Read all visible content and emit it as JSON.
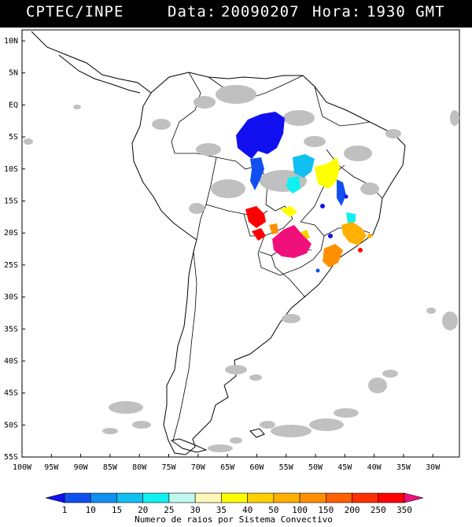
{
  "header": {
    "source": "CPTEC/INPE",
    "date_label": "Data:",
    "date_value": "20090207",
    "hour_label": "Hora:",
    "hour_value": "1930 GMT"
  },
  "map": {
    "lat_ticks": [
      "10N",
      "5N",
      "EQ",
      "5S",
      "10S",
      "15S",
      "20S",
      "25S",
      "30S",
      "35S",
      "40S",
      "45S",
      "50S",
      "55S"
    ],
    "lon_ticks": [
      "100W",
      "95W",
      "90W",
      "85W",
      "80W",
      "75W",
      "70W",
      "65W",
      "60W",
      "55W",
      "50W",
      "45W",
      "40W",
      "35W",
      "30W"
    ],
    "cloud_color": "#c0c0c0",
    "coast_color": "#000000"
  },
  "legend": {
    "title": "Numero de raios por Sistema Convectivo",
    "labels": [
      "1",
      "10",
      "15",
      "20",
      "25",
      "30",
      "35",
      "40",
      "50",
      "100",
      "150",
      "200",
      "250",
      "350"
    ],
    "colors": [
      "#1010f0",
      "#1050f0",
      "#1090f0",
      "#10c0f0",
      "#10f0f0",
      "#c0f8f0",
      "#fff8b8",
      "#ffff00",
      "#ffd000",
      "#ffb000",
      "#ff9000",
      "#ff6000",
      "#ff3000",
      "#ff0000",
      "#f0107c"
    ]
  }
}
